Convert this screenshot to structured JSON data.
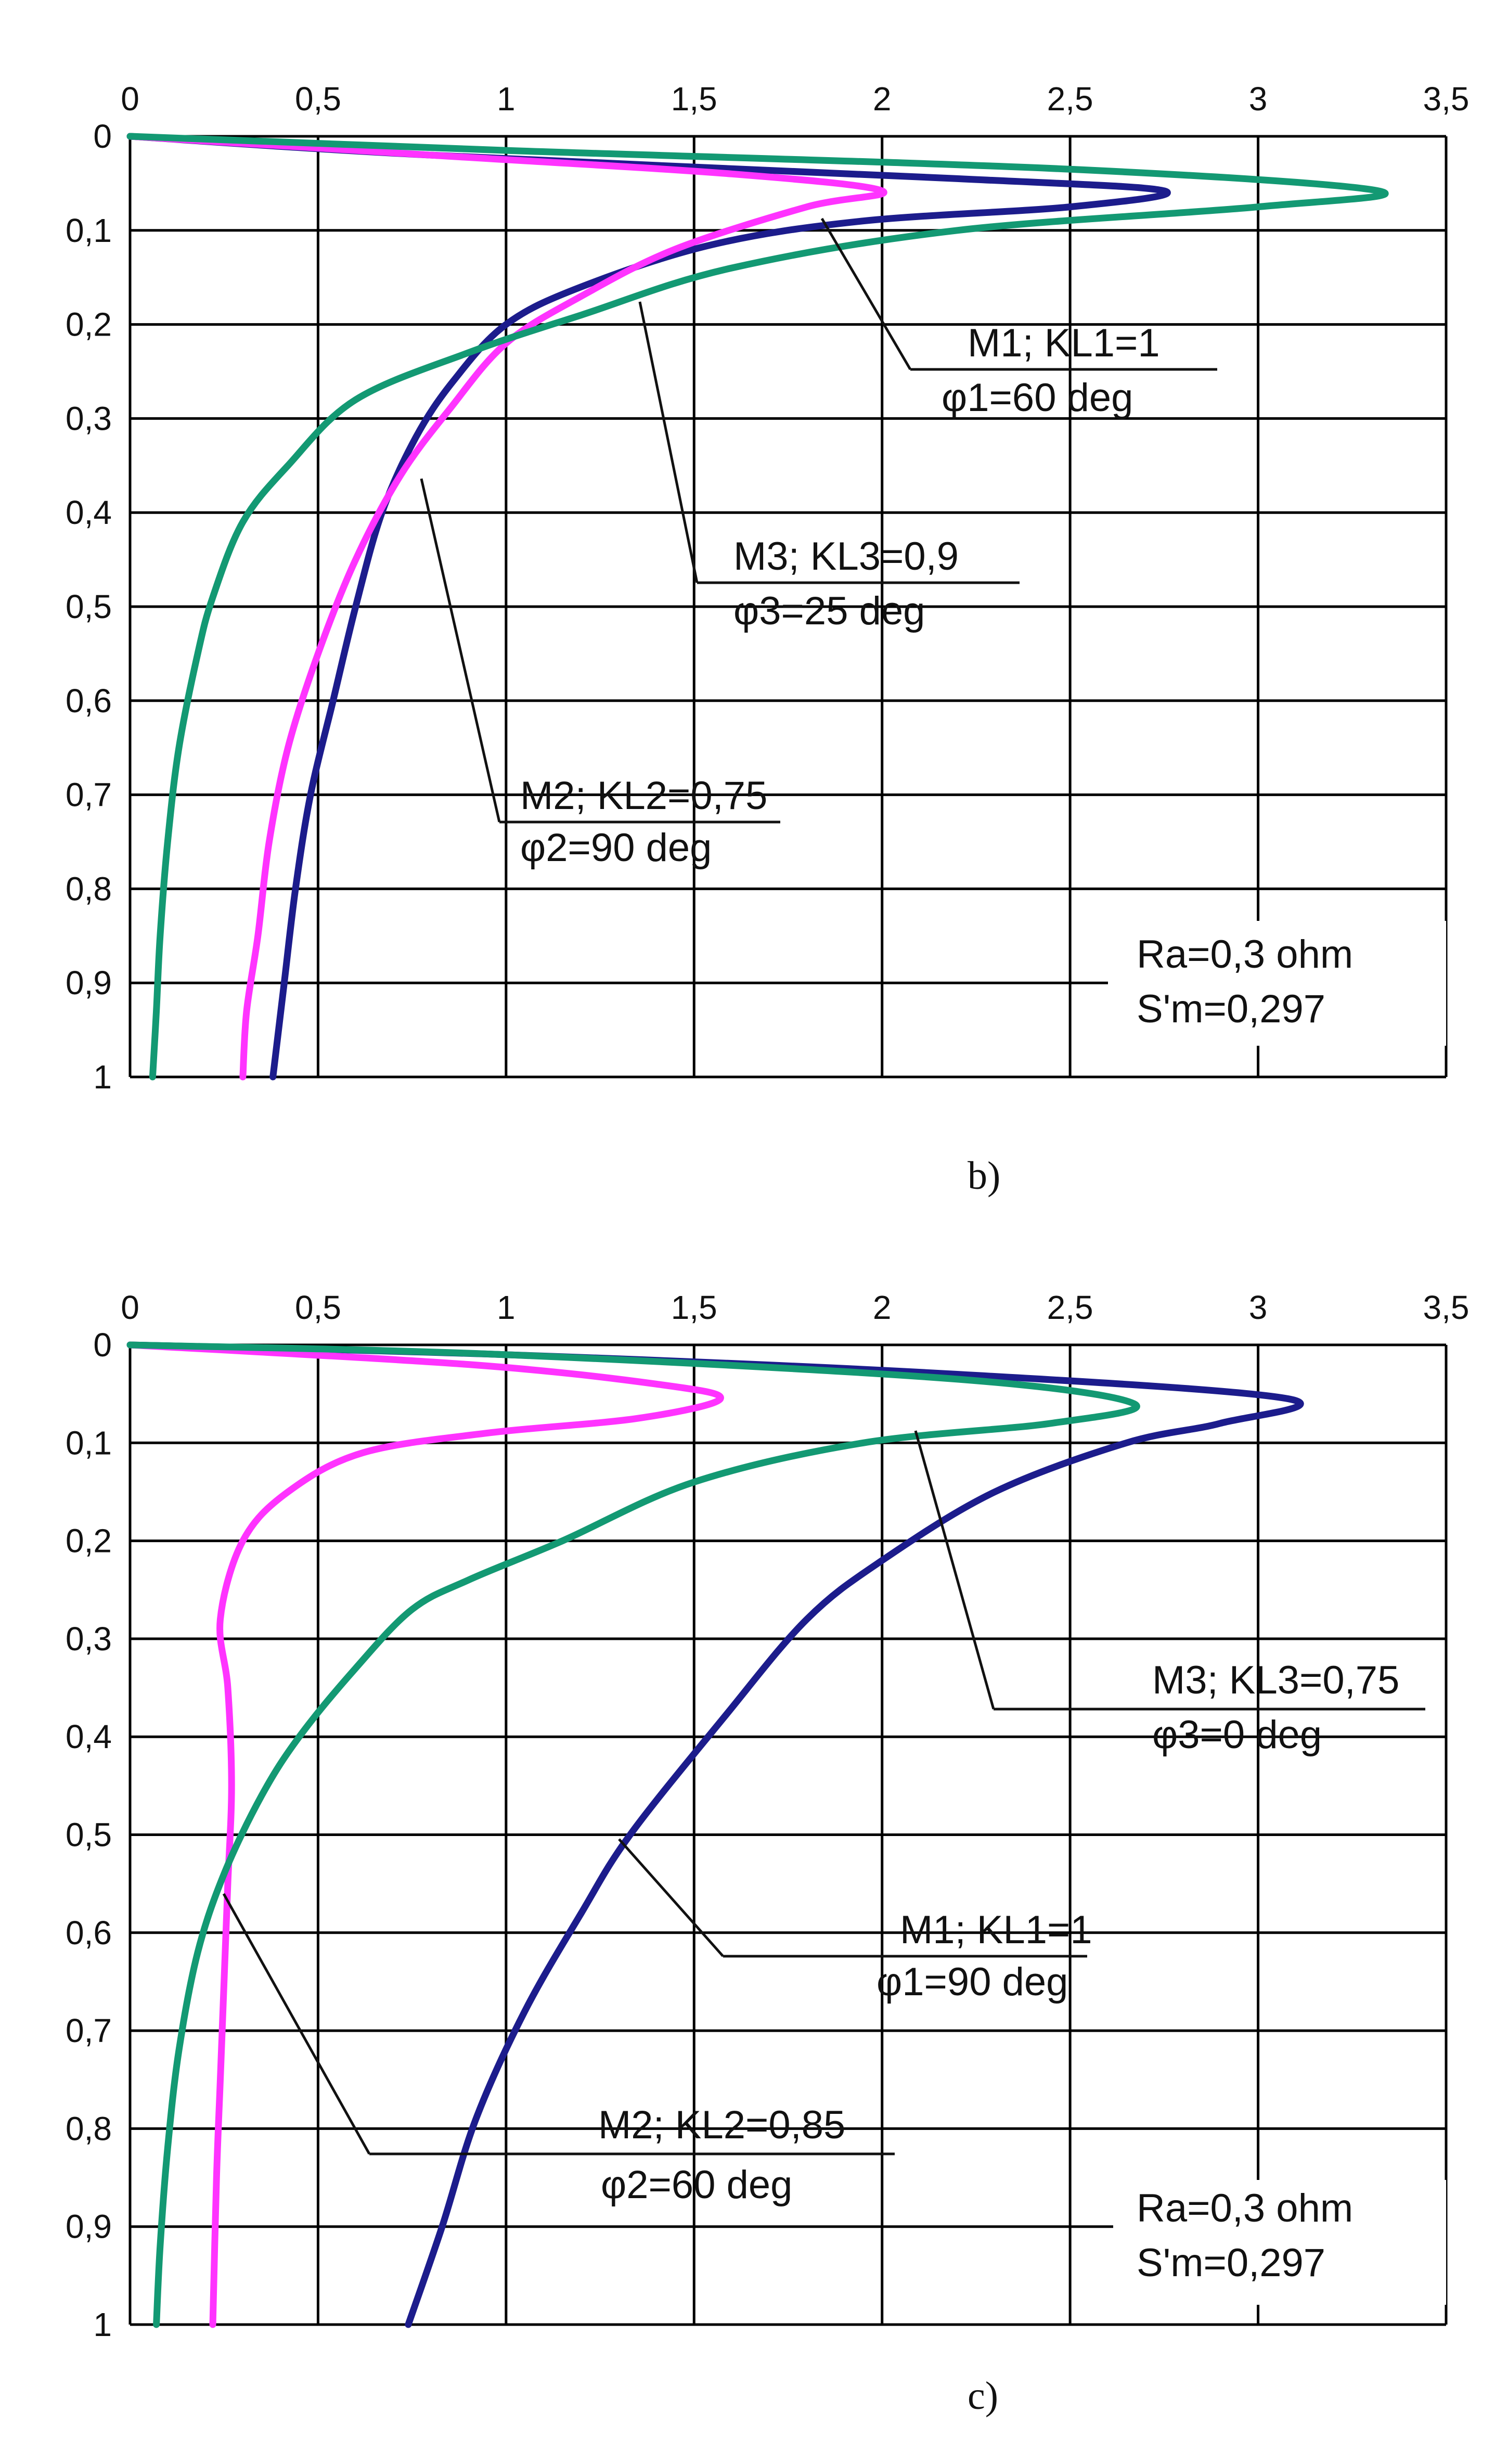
{
  "chart_data": [
    {
      "type": "line",
      "panel_label": "b)",
      "x_axis": {
        "position": "top",
        "range": [
          0,
          3.5
        ],
        "ticks": [
          0,
          0.5,
          1,
          1.5,
          2,
          2.5,
          3,
          3.5
        ],
        "tick_labels": [
          "0",
          "0,5",
          "1",
          "1,5",
          "2",
          "2,5",
          "3",
          "3,5"
        ]
      },
      "y_axis": {
        "inverted": true,
        "range": [
          0,
          1
        ],
        "ticks": [
          0,
          0.1,
          0.2,
          0.3,
          0.4,
          0.5,
          0.6,
          0.7,
          0.8,
          0.9,
          1
        ],
        "tick_labels": [
          "0",
          "0,1",
          "0,2",
          "0,3",
          "0,4",
          "0,5",
          "0,6",
          "0,7",
          "0,8",
          "0,9",
          "1"
        ]
      },
      "grid": true,
      "series": [
        {
          "name": "M1",
          "color": "#1c1c8c",
          "points": [
            [
              0,
              0
            ],
            [
              0.8,
              0.02
            ],
            [
              2.2,
              0.045
            ],
            [
              2.75,
              0.058
            ],
            [
              2.5,
              0.075
            ],
            [
              1.95,
              0.09
            ],
            [
              1.55,
              0.115
            ],
            [
              1.2,
              0.16
            ],
            [
              1.0,
              0.2
            ],
            [
              0.86,
              0.26
            ],
            [
              0.76,
              0.32
            ],
            [
              0.67,
              0.4
            ],
            [
              0.6,
              0.5
            ],
            [
              0.54,
              0.6
            ],
            [
              0.48,
              0.7
            ],
            [
              0.44,
              0.8
            ],
            [
              0.41,
              0.9
            ],
            [
              0.38,
              1.0
            ]
          ]
        },
        {
          "name": "M2",
          "color": "#ff33ff",
          "points": [
            [
              0,
              0
            ],
            [
              0.8,
              0.02
            ],
            [
              1.6,
              0.04
            ],
            [
              2.0,
              0.058
            ],
            [
              1.8,
              0.075
            ],
            [
              1.45,
              0.12
            ],
            [
              1.2,
              0.17
            ],
            [
              1.0,
              0.22
            ],
            [
              0.85,
              0.29
            ],
            [
              0.72,
              0.36
            ],
            [
              0.6,
              0.45
            ],
            [
              0.5,
              0.55
            ],
            [
              0.42,
              0.65
            ],
            [
              0.37,
              0.75
            ],
            [
              0.34,
              0.85
            ],
            [
              0.31,
              0.93
            ],
            [
              0.3,
              1.0
            ]
          ]
        },
        {
          "name": "M3",
          "color": "#139973",
          "points": [
            [
              0,
              0
            ],
            [
              1.0,
              0.015
            ],
            [
              2.5,
              0.035
            ],
            [
              3.32,
              0.058
            ],
            [
              3.0,
              0.075
            ],
            [
              2.2,
              0.1
            ],
            [
              1.6,
              0.14
            ],
            [
              1.2,
              0.19
            ],
            [
              0.9,
              0.23
            ],
            [
              0.6,
              0.28
            ],
            [
              0.42,
              0.35
            ],
            [
              0.3,
              0.41
            ],
            [
              0.22,
              0.49
            ],
            [
              0.18,
              0.55
            ],
            [
              0.13,
              0.65
            ],
            [
              0.1,
              0.75
            ],
            [
              0.08,
              0.85
            ],
            [
              0.07,
              0.93
            ],
            [
              0.06,
              1.0
            ]
          ]
        }
      ],
      "annotations": [
        {
          "lines": [
            "M1;  KL1=1",
            "φ1=60 deg"
          ],
          "series": "M1",
          "data_anchor": [
            1.87,
            0.09
          ]
        },
        {
          "lines": [
            "M3; KL3=0,9",
            "φ3=25 deg"
          ],
          "series": "M3",
          "data_anchor": [
            1.37,
            0.18
          ]
        },
        {
          "lines": [
            "M2; KL2=0,75",
            "φ2=90 deg"
          ],
          "series": "M2",
          "data_anchor": [
            0.8,
            0.34
          ]
        },
        {
          "lines": [
            "Ra=0,3 ohm",
            "S'm=0,297"
          ]
        }
      ]
    },
    {
      "type": "line",
      "panel_label": "c)",
      "x_axis": {
        "position": "top",
        "range": [
          0,
          3.5
        ],
        "ticks": [
          0,
          0.5,
          1,
          1.5,
          2,
          2.5,
          3,
          3.5
        ],
        "tick_labels": [
          "0",
          "0,5",
          "1",
          "1,5",
          "2",
          "2,5",
          "3",
          "3,5"
        ]
      },
      "y_axis": {
        "inverted": true,
        "range": [
          0,
          1
        ],
        "ticks": [
          0,
          0.1,
          0.2,
          0.3,
          0.4,
          0.5,
          0.6,
          0.7,
          0.8,
          0.9,
          1
        ],
        "tick_labels": [
          "0",
          "0,1",
          "0,2",
          "0,3",
          "0,4",
          "0,5",
          "0,6",
          "0,7",
          "0,8",
          "0,9",
          "1"
        ]
      },
      "grid": true,
      "series": [
        {
          "name": "M1",
          "color": "#1c1c8c",
          "points": [
            [
              0,
              0
            ],
            [
              1.0,
              0.01
            ],
            [
              2.2,
              0.03
            ],
            [
              3.08,
              0.055
            ],
            [
              2.9,
              0.08
            ],
            [
              2.65,
              0.1
            ],
            [
              2.3,
              0.15
            ],
            [
              2.0,
              0.22
            ],
            [
              1.8,
              0.28
            ],
            [
              1.58,
              0.38
            ],
            [
              1.33,
              0.5
            ],
            [
              1.2,
              0.58
            ],
            [
              1.05,
              0.68
            ],
            [
              0.92,
              0.79
            ],
            [
              0.83,
              0.9
            ],
            [
              0.74,
              1.0
            ]
          ]
        },
        {
          "name": "M2",
          "color": "#ff33ff",
          "points": [
            [
              0,
              0
            ],
            [
              0.9,
              0.02
            ],
            [
              1.4,
              0.04
            ],
            [
              1.57,
              0.055
            ],
            [
              1.35,
              0.075
            ],
            [
              0.95,
              0.09
            ],
            [
              0.62,
              0.11
            ],
            [
              0.42,
              0.15
            ],
            [
              0.3,
              0.2
            ],
            [
              0.24,
              0.28
            ],
            [
              0.26,
              0.35
            ],
            [
              0.27,
              0.45
            ],
            [
              0.26,
              0.55
            ],
            [
              0.25,
              0.65
            ],
            [
              0.24,
              0.75
            ],
            [
              0.23,
              0.85
            ],
            [
              0.22,
              1.0
            ]
          ]
        },
        {
          "name": "M3",
          "color": "#139973",
          "points": [
            [
              0,
              0
            ],
            [
              1.0,
              0.01
            ],
            [
              2.2,
              0.035
            ],
            [
              2.67,
              0.06
            ],
            [
              2.45,
              0.08
            ],
            [
              1.95,
              0.1
            ],
            [
              1.5,
              0.14
            ],
            [
              1.15,
              0.2
            ],
            [
              0.9,
              0.24
            ],
            [
              0.75,
              0.27
            ],
            [
              0.6,
              0.33
            ],
            [
              0.45,
              0.4
            ],
            [
              0.35,
              0.46
            ],
            [
              0.25,
              0.54
            ],
            [
              0.18,
              0.62
            ],
            [
              0.13,
              0.72
            ],
            [
              0.1,
              0.82
            ],
            [
              0.08,
              0.92
            ],
            [
              0.07,
              1.0
            ]
          ]
        }
      ],
      "annotations": [
        {
          "lines": [
            "M3; KL3=0,75",
            "φ3=0 deg"
          ],
          "series": "M3",
          "data_anchor": [
            2.1,
            0.095
          ]
        },
        {
          "lines": [
            "M1;  KL1=1",
            "φ1=90 deg"
          ],
          "series": "M1",
          "data_anchor": [
            1.3,
            0.5
          ]
        },
        {
          "lines": [
            "M2; KL2=0,85",
            "φ2=60 deg"
          ],
          "series": "M2",
          "data_anchor": [
            0.24,
            0.55
          ]
        },
        {
          "lines": [
            "Ra=0,3 ohm",
            "S'm=0,297"
          ]
        }
      ]
    }
  ]
}
